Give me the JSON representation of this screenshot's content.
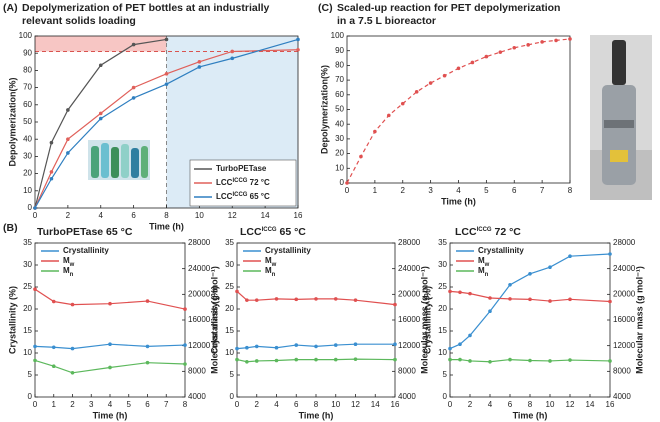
{
  "chart_data": [
    {
      "type": "line",
      "panel_label": "(A)",
      "title": [
        "Depolymerization of PET bottles at an industrially",
        "relevant solids loading"
      ],
      "xlabel": "Time (h)",
      "ylabel": "Depolymerization(%)",
      "xlim": [
        0,
        16
      ],
      "xticks": [
        0,
        2,
        4,
        6,
        8,
        10,
        12,
        14,
        16
      ],
      "ylim": [
        0,
        100
      ],
      "yticks": [
        0,
        10,
        20,
        30,
        40,
        50,
        60,
        70,
        80,
        90,
        100
      ],
      "bands": [
        {
          "x": [
            0,
            8
          ],
          "y": [
            91,
            100
          ],
          "color": "#f7c6c4"
        },
        {
          "x": [
            8,
            16
          ],
          "y": [
            0,
            100
          ],
          "color": "#dcebf6"
        }
      ],
      "ref_lines": [
        {
          "y": 91,
          "color": "#d9534f"
        },
        {
          "x": 8,
          "color": "#888888"
        }
      ],
      "legend": "lower right",
      "legend_script": "super",
      "series": [
        {
          "name": [
            "TurboPETase"
          ],
          "color": "#555555",
          "x": [
            0,
            1,
            2,
            4,
            6,
            8
          ],
          "values": [
            0,
            38,
            57,
            83,
            95,
            98
          ]
        },
        {
          "name": [
            "LCC",
            "ICCG",
            " 72 °C"
          ],
          "color": "#e0605a",
          "x": [
            0,
            1,
            2,
            4,
            6,
            8,
            10,
            12,
            16
          ],
          "values": [
            0,
            21,
            40,
            55,
            70,
            78,
            85,
            91,
            92
          ]
        },
        {
          "name": [
            "LCC",
            "ICCG",
            " 65 °C"
          ],
          "color": "#2f7fc0",
          "x": [
            0,
            1,
            2,
            4,
            6,
            8,
            10,
            12,
            16
          ],
          "values": [
            0,
            17,
            32,
            52,
            64,
            72,
            82,
            87,
            98
          ]
        }
      ]
    },
    {
      "type": "line",
      "panel_label": "(C)",
      "title": [
        "Scaled-up reaction for PET depolymerization",
        "in a 7.5 L bioreactor"
      ],
      "xlabel": "Time (h)",
      "ylabel": "Depolymerization(%)",
      "xlim": [
        0,
        8
      ],
      "xticks": [
        0,
        1,
        2,
        3,
        4,
        5,
        6,
        7,
        8
      ],
      "ylim": [
        0,
        100
      ],
      "yticks": [
        0,
        10,
        20,
        30,
        40,
        50,
        60,
        70,
        80,
        90,
        100
      ],
      "dashed": true,
      "series": [
        {
          "name": [
            "Depolymerization"
          ],
          "color": "#e05050",
          "x": [
            0,
            0.5,
            1,
            1.5,
            2,
            2.5,
            3,
            3.5,
            4,
            4.5,
            5,
            5.5,
            6,
            6.5,
            7,
            7.5,
            8
          ],
          "values": [
            0,
            18,
            35,
            46,
            54,
            62,
            68,
            73,
            78,
            82,
            86,
            89,
            92,
            94,
            96,
            97,
            98
          ]
        }
      ]
    },
    {
      "type": "line",
      "panel_label": "(B)",
      "title": [
        "TurboPETase 65 °C"
      ],
      "xlabel": "Time (h)",
      "ylabel": "Crystallinity (%)",
      "y2label": "Molecular mass (g mol⁻¹)",
      "xlim": [
        0,
        8
      ],
      "xticks": [
        0,
        1,
        2,
        3,
        4,
        5,
        6,
        7,
        8
      ],
      "ylim": [
        0,
        35
      ],
      "yticks": [
        0,
        5,
        10,
        15,
        20,
        25,
        30,
        35
      ],
      "y2lim": [
        4000,
        28000
      ],
      "y2ticks": [
        4000,
        8000,
        12000,
        16000,
        20000,
        24000,
        28000
      ],
      "legend": "upper left",
      "legend_script": "sub",
      "series": [
        {
          "name": [
            "Crystallinity"
          ],
          "color": "#3a8fd0",
          "x": [
            0,
            1,
            2,
            4,
            6,
            8
          ],
          "values": [
            11.5,
            11.3,
            11,
            12,
            11.5,
            11.8
          ]
        },
        {
          "name": [
            "M",
            "w"
          ],
          "color": "#e05050",
          "axis": "y2",
          "x": [
            0,
            1,
            2,
            4,
            6,
            8
          ],
          "values": [
            20800,
            18880,
            18400,
            18540,
            18950,
            17700
          ]
        },
        {
          "name": [
            "M",
            "n"
          ],
          "color": "#5cb85c",
          "axis": "y2",
          "x": [
            0,
            1,
            2,
            4,
            6,
            8
          ],
          "values": [
            9700,
            8800,
            7770,
            8600,
            9350,
            9140
          ]
        }
      ]
    },
    {
      "type": "line",
      "title": [
        "LCC",
        "ICCG",
        " 65 °C"
      ],
      "title_script": "super",
      "xlabel": "Time (h)",
      "ylabel": "Crystallinity (%)",
      "y2label": "Molecular mass (g mol⁻¹)",
      "xlim": [
        0,
        16
      ],
      "xticks": [
        0,
        2,
        4,
        6,
        8,
        10,
        12,
        14,
        16
      ],
      "ylim": [
        0,
        35
      ],
      "yticks": [
        0,
        5,
        10,
        15,
        20,
        25,
        30,
        35
      ],
      "y2lim": [
        4000,
        28000
      ],
      "y2ticks": [
        4000,
        8000,
        12000,
        16000,
        20000,
        24000,
        28000
      ],
      "legend": "upper left",
      "legend_script": "sub",
      "series": [
        {
          "name": [
            "Crystallinity"
          ],
          "color": "#3a8fd0",
          "x": [
            0,
            1,
            2,
            4,
            6,
            8,
            10,
            12,
            16
          ],
          "values": [
            11,
            11.2,
            11.5,
            11.2,
            11.8,
            11.5,
            11.8,
            12,
            12
          ]
        },
        {
          "name": [
            "M",
            "w"
          ],
          "color": "#e05050",
          "axis": "y2",
          "x": [
            0,
            1,
            2,
            4,
            6,
            8,
            10,
            12,
            16
          ],
          "values": [
            20460,
            19090,
            19090,
            19290,
            19220,
            19290,
            19290,
            19090,
            18400
          ]
        },
        {
          "name": [
            "M",
            "n"
          ],
          "color": "#5cb85c",
          "axis": "y2",
          "x": [
            0,
            1,
            2,
            4,
            6,
            8,
            10,
            12,
            16
          ],
          "values": [
            9830,
            9490,
            9620,
            9690,
            9830,
            9830,
            9830,
            9900,
            9830
          ]
        }
      ]
    },
    {
      "type": "line",
      "title": [
        "LCC",
        "ICCG",
        " 72 °C"
      ],
      "title_script": "super",
      "xlabel": "Time (h)",
      "ylabel": "Crystallinity (%)",
      "y2label": "Molecular mass (g mol⁻¹)",
      "xlim": [
        0,
        16
      ],
      "xticks": [
        0,
        2,
        4,
        6,
        8,
        10,
        12,
        14,
        16
      ],
      "ylim": [
        0,
        35
      ],
      "yticks": [
        0,
        5,
        10,
        15,
        20,
        25,
        30,
        35
      ],
      "y2lim": [
        4000,
        28000
      ],
      "y2ticks": [
        4000,
        8000,
        12000,
        16000,
        20000,
        24000,
        28000
      ],
      "legend": "upper left",
      "legend_script": "sub",
      "series": [
        {
          "name": [
            "Crystallinity"
          ],
          "color": "#3a8fd0",
          "x": [
            0,
            1,
            2,
            4,
            6,
            8,
            10,
            12,
            16
          ],
          "values": [
            11,
            12,
            14,
            19.5,
            25.5,
            28,
            29.5,
            32,
            32.5
          ]
        },
        {
          "name": [
            "M",
            "w"
          ],
          "color": "#e05050",
          "axis": "y2",
          "x": [
            0,
            1,
            2,
            4,
            6,
            8,
            10,
            12,
            16
          ],
          "values": [
            20460,
            20320,
            20110,
            19430,
            19290,
            19220,
            18950,
            19220,
            18880
          ]
        },
        {
          "name": [
            "M",
            "n"
          ],
          "color": "#5cb85c",
          "axis": "y2",
          "x": [
            0,
            1,
            2,
            4,
            6,
            8,
            10,
            12,
            16
          ],
          "values": [
            9830,
            9830,
            9620,
            9490,
            9830,
            9690,
            9620,
            9760,
            9620
          ]
        }
      ]
    }
  ]
}
